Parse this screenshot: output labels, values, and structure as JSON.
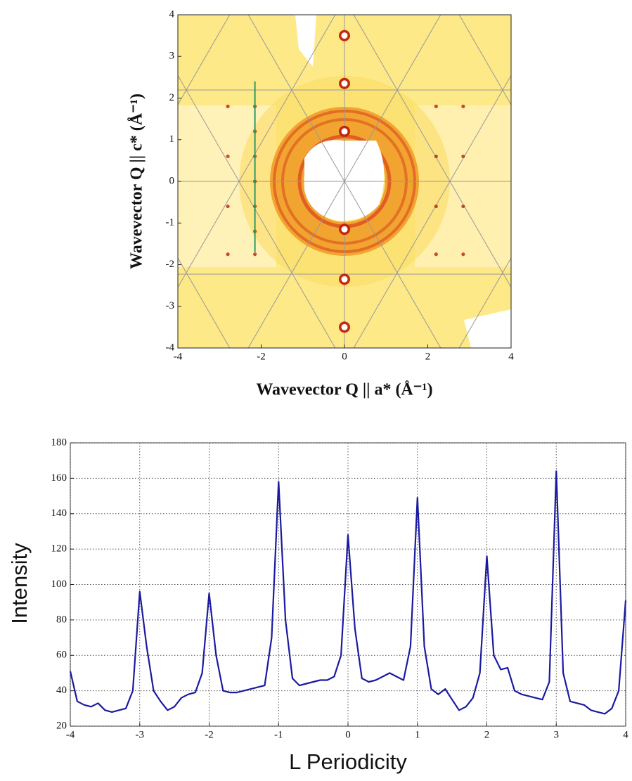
{
  "chart_data": [
    {
      "type": "image",
      "x_label": "Wavevector Q || a* (Å⁻¹)",
      "y_label": "Wavevector Q || c* (Å⁻¹)",
      "xlim": [
        -4,
        4
      ],
      "ylim": [
        -4,
        4
      ],
      "xticks": [
        -4,
        -2,
        0,
        2,
        4
      ],
      "yticks": [
        -4,
        -3,
        -2,
        -1,
        0,
        1,
        2,
        3,
        4
      ],
      "spots": {
        "color": "#c0200a",
        "x": [
          0,
          0,
          0,
          0,
          0,
          0,
          -2.8,
          -2.15,
          -2.8,
          -2.15,
          -2.8,
          -2.15,
          -2.8,
          -2.15,
          2.2,
          2.85,
          2.2,
          2.85,
          2.2,
          2.85,
          2.2,
          2.85,
          -2.15,
          -2.15,
          -2.15
        ],
        "y": [
          3.5,
          2.35,
          1.2,
          -1.15,
          -2.35,
          -3.5,
          1.8,
          1.8,
          0.6,
          0.6,
          -0.6,
          -0.6,
          -1.75,
          -1.75,
          1.8,
          1.8,
          0.6,
          0.6,
          -0.6,
          -0.6,
          -1.75,
          -1.75,
          1.2,
          0,
          -1.2
        ]
      },
      "cut": {
        "color": "#2a9a60",
        "x": [
          -2.15,
          -2.15
        ],
        "y": [
          -1.7,
          2.4
        ]
      }
    },
    {
      "type": "line",
      "x_label": "L Periodicity",
      "y_label": "Intensity",
      "xlim": [
        -4,
        4
      ],
      "ylim": [
        20,
        180
      ],
      "xticks": [
        -4,
        -3,
        -2,
        -1,
        0,
        1,
        2,
        3,
        4
      ],
      "yticks": [
        20,
        40,
        60,
        80,
        100,
        120,
        140,
        160,
        180
      ],
      "grid": true,
      "color": "#1a1aa0",
      "x": [
        -4.0,
        -3.9,
        -3.8,
        -3.7,
        -3.6,
        -3.5,
        -3.4,
        -3.3,
        -3.2,
        -3.1,
        -3.0,
        -2.9,
        -2.8,
        -2.7,
        -2.6,
        -2.5,
        -2.4,
        -2.3,
        -2.2,
        -2.1,
        -2.0,
        -1.9,
        -1.8,
        -1.7,
        -1.6,
        -1.5,
        -1.4,
        -1.3,
        -1.2,
        -1.1,
        -1.0,
        -0.9,
        -0.8,
        -0.7,
        -0.6,
        -0.5,
        -0.4,
        -0.3,
        -0.2,
        -0.1,
        0.0,
        0.1,
        0.2,
        0.3,
        0.4,
        0.5,
        0.6,
        0.7,
        0.8,
        0.9,
        1.0,
        1.1,
        1.2,
        1.3,
        1.4,
        1.5,
        1.6,
        1.7,
        1.8,
        1.9,
        2.0,
        2.1,
        2.2,
        2.3,
        2.4,
        2.5,
        2.6,
        2.7,
        2.8,
        2.9,
        3.0,
        3.1,
        3.2,
        3.3,
        3.4,
        3.5,
        3.6,
        3.7,
        3.8,
        3.9,
        4.0
      ],
      "values": [
        51,
        34,
        32,
        31,
        33,
        29,
        28,
        29,
        30,
        40,
        96,
        65,
        40,
        34,
        29,
        31,
        36,
        38,
        39,
        50,
        95,
        60,
        40,
        39,
        39,
        40,
        41,
        42,
        43,
        70,
        158,
        80,
        47,
        43,
        44,
        45,
        46,
        46,
        48,
        60,
        128,
        75,
        47,
        45,
        46,
        48,
        50,
        48,
        46,
        65,
        149,
        65,
        41,
        38,
        41,
        35,
        29,
        31,
        36,
        50,
        116,
        60,
        52,
        53,
        40,
        38,
        37,
        36,
        35,
        45,
        164,
        50,
        34,
        33,
        32,
        29,
        28,
        27,
        30,
        40,
        91
      ]
    }
  ]
}
